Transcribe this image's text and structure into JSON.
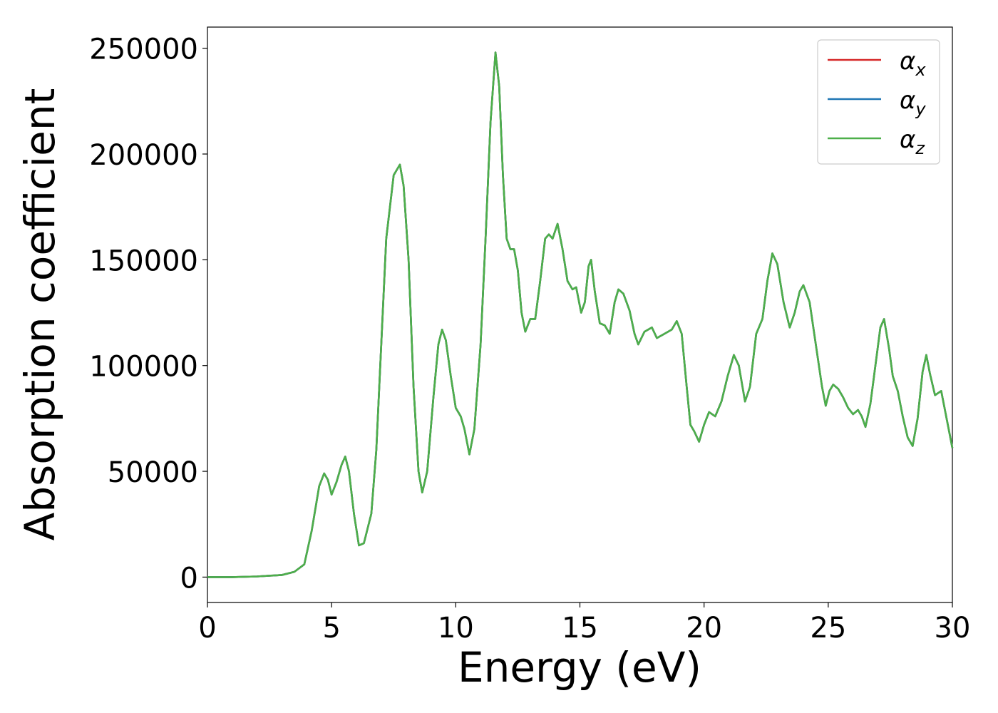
{
  "chart_data": {
    "type": "line",
    "title": "",
    "xlabel": "Energy (eV)",
    "ylabel": "Absorption coefficient",
    "xlim": [
      0,
      30
    ],
    "ylim": [
      -12000,
      260000
    ],
    "x_ticks": [
      0,
      5,
      10,
      15,
      20,
      25,
      30
    ],
    "y_ticks": [
      0,
      50000,
      100000,
      150000,
      200000,
      250000
    ],
    "grid": false,
    "legend": {
      "placement": "top-right",
      "entries": [
        "αx",
        "αy",
        "αz"
      ]
    },
    "series": [
      {
        "name": "αx",
        "symbol": "α",
        "subscript": "x",
        "color": "#d62728",
        "points": [
          [
            0,
            0
          ],
          [
            1,
            0
          ],
          [
            2,
            300
          ],
          [
            3,
            1000
          ],
          [
            3.5,
            2500
          ],
          [
            3.9,
            6000
          ],
          [
            4.2,
            22000
          ],
          [
            4.5,
            43000
          ],
          [
            4.7,
            49000
          ],
          [
            4.85,
            46000
          ],
          [
            5.0,
            39000
          ],
          [
            5.2,
            45000
          ],
          [
            5.4,
            53000
          ],
          [
            5.55,
            57000
          ],
          [
            5.7,
            50000
          ],
          [
            5.9,
            30000
          ],
          [
            6.1,
            15000
          ],
          [
            6.3,
            16000
          ],
          [
            6.6,
            30000
          ],
          [
            6.8,
            60000
          ],
          [
            7.0,
            110000
          ],
          [
            7.2,
            160000
          ],
          [
            7.5,
            190000
          ],
          [
            7.75,
            195000
          ],
          [
            7.9,
            185000
          ],
          [
            8.1,
            150000
          ],
          [
            8.3,
            90000
          ],
          [
            8.5,
            50000
          ],
          [
            8.65,
            40000
          ],
          [
            8.85,
            50000
          ],
          [
            9.1,
            85000
          ],
          [
            9.3,
            110000
          ],
          [
            9.45,
            117000
          ],
          [
            9.6,
            112000
          ],
          [
            9.8,
            95000
          ],
          [
            10.0,
            80000
          ],
          [
            10.2,
            76000
          ],
          [
            10.35,
            70000
          ],
          [
            10.55,
            58000
          ],
          [
            10.75,
            70000
          ],
          [
            11.0,
            110000
          ],
          [
            11.2,
            160000
          ],
          [
            11.4,
            215000
          ],
          [
            11.6,
            248000
          ],
          [
            11.75,
            232000
          ],
          [
            11.9,
            190000
          ],
          [
            12.05,
            160000
          ],
          [
            12.2,
            155000
          ],
          [
            12.35,
            155000
          ],
          [
            12.5,
            145000
          ],
          [
            12.65,
            125000
          ],
          [
            12.8,
            116000
          ],
          [
            13.0,
            122000
          ],
          [
            13.2,
            122000
          ],
          [
            13.4,
            140000
          ],
          [
            13.6,
            160000
          ],
          [
            13.75,
            162000
          ],
          [
            13.9,
            160000
          ],
          [
            14.1,
            167000
          ],
          [
            14.3,
            155000
          ],
          [
            14.5,
            140000
          ],
          [
            14.7,
            136000
          ],
          [
            14.85,
            137000
          ],
          [
            15.05,
            125000
          ],
          [
            15.2,
            130000
          ],
          [
            15.35,
            147000
          ],
          [
            15.45,
            150000
          ],
          [
            15.6,
            135000
          ],
          [
            15.8,
            120000
          ],
          [
            16.0,
            119000
          ],
          [
            16.2,
            115000
          ],
          [
            16.4,
            130000
          ],
          [
            16.55,
            136000
          ],
          [
            16.75,
            134000
          ],
          [
            17.0,
            126000
          ],
          [
            17.2,
            115000
          ],
          [
            17.35,
            110000
          ],
          [
            17.6,
            116000
          ],
          [
            17.9,
            118000
          ],
          [
            18.1,
            113000
          ],
          [
            18.4,
            115000
          ],
          [
            18.7,
            117000
          ],
          [
            18.9,
            121000
          ],
          [
            19.1,
            115000
          ],
          [
            19.3,
            90000
          ],
          [
            19.45,
            72000
          ],
          [
            19.6,
            69000
          ],
          [
            19.8,
            64000
          ],
          [
            20.0,
            72000
          ],
          [
            20.2,
            78000
          ],
          [
            20.45,
            76000
          ],
          [
            20.7,
            83000
          ],
          [
            20.95,
            95000
          ],
          [
            21.2,
            105000
          ],
          [
            21.4,
            100000
          ],
          [
            21.65,
            83000
          ],
          [
            21.85,
            90000
          ],
          [
            22.1,
            115000
          ],
          [
            22.35,
            122000
          ],
          [
            22.55,
            140000
          ],
          [
            22.75,
            153000
          ],
          [
            22.95,
            148000
          ],
          [
            23.2,
            130000
          ],
          [
            23.45,
            118000
          ],
          [
            23.65,
            125000
          ],
          [
            23.85,
            135000
          ],
          [
            24.0,
            138000
          ],
          [
            24.25,
            130000
          ],
          [
            24.5,
            110000
          ],
          [
            24.75,
            90000
          ],
          [
            24.9,
            81000
          ],
          [
            25.05,
            88000
          ],
          [
            25.2,
            91000
          ],
          [
            25.4,
            89000
          ],
          [
            25.6,
            85000
          ],
          [
            25.8,
            80000
          ],
          [
            26.0,
            77000
          ],
          [
            26.2,
            79000
          ],
          [
            26.35,
            76000
          ],
          [
            26.5,
            71000
          ],
          [
            26.7,
            82000
          ],
          [
            26.9,
            100000
          ],
          [
            27.1,
            118000
          ],
          [
            27.25,
            122000
          ],
          [
            27.45,
            108000
          ],
          [
            27.6,
            95000
          ],
          [
            27.8,
            88000
          ],
          [
            28.0,
            76000
          ],
          [
            28.2,
            66000
          ],
          [
            28.4,
            62000
          ],
          [
            28.6,
            75000
          ],
          [
            28.8,
            97000
          ],
          [
            28.95,
            105000
          ],
          [
            29.1,
            96000
          ],
          [
            29.3,
            86000
          ],
          [
            29.55,
            88000
          ],
          [
            29.75,
            76000
          ],
          [
            30.0,
            61000
          ]
        ]
      },
      {
        "name": "αy",
        "symbol": "α",
        "subscript": "y",
        "color": "#1f77b4",
        "same_as": "αx"
      },
      {
        "name": "αz",
        "symbol": "α",
        "subscript": "z",
        "color": "#4daf4a",
        "same_as": "αx"
      }
    ]
  }
}
